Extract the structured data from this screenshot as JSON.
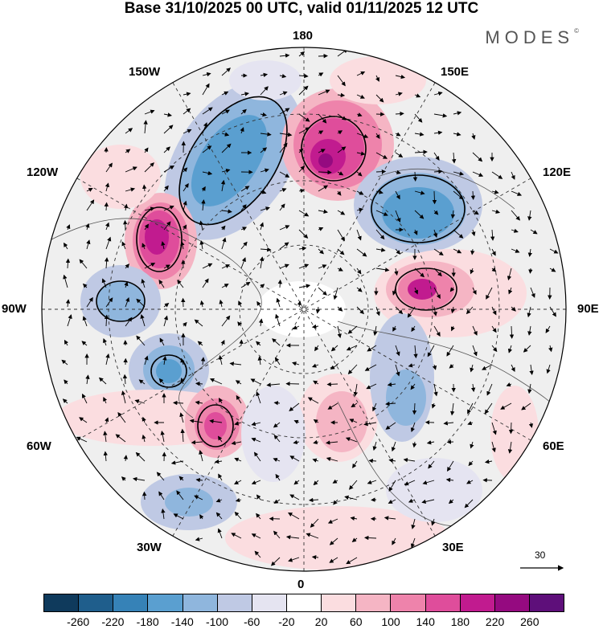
{
  "title": "Base 31/10/2025 00 UTC, valid 01/11/2025 12 UTC",
  "brand": "MODES",
  "brand_mark": "©",
  "longitude_labels": {
    "top": "180",
    "bottom": "0",
    "left": "90W",
    "right": "90E",
    "upper_left": "150W",
    "upper_right": "150E",
    "left_upper": "120W",
    "right_upper": "120E",
    "left_lower": "60W",
    "right_lower": "60E",
    "lower_left": "30W",
    "lower_right": "30E"
  },
  "vector_scale_label": "30",
  "colorbar": {
    "colors": [
      "#0f3a5c",
      "#1f5e8c",
      "#3682b7",
      "#5a9fd0",
      "#8fb6dd",
      "#bfc9e4",
      "#e5e4f1",
      "#ffffff",
      "#fbdde0",
      "#f5b5c4",
      "#ee83ab",
      "#df4d9b",
      "#c11b8f",
      "#950a80",
      "#5e0f7a"
    ],
    "ticks": [
      "-260",
      "-220",
      "-180",
      "-140",
      "-100",
      "-60",
      "-20",
      "20",
      "60",
      "100",
      "140",
      "180",
      "220",
      "260"
    ]
  },
  "icons": {
    "vector_arrow": "arrow-icon"
  }
}
